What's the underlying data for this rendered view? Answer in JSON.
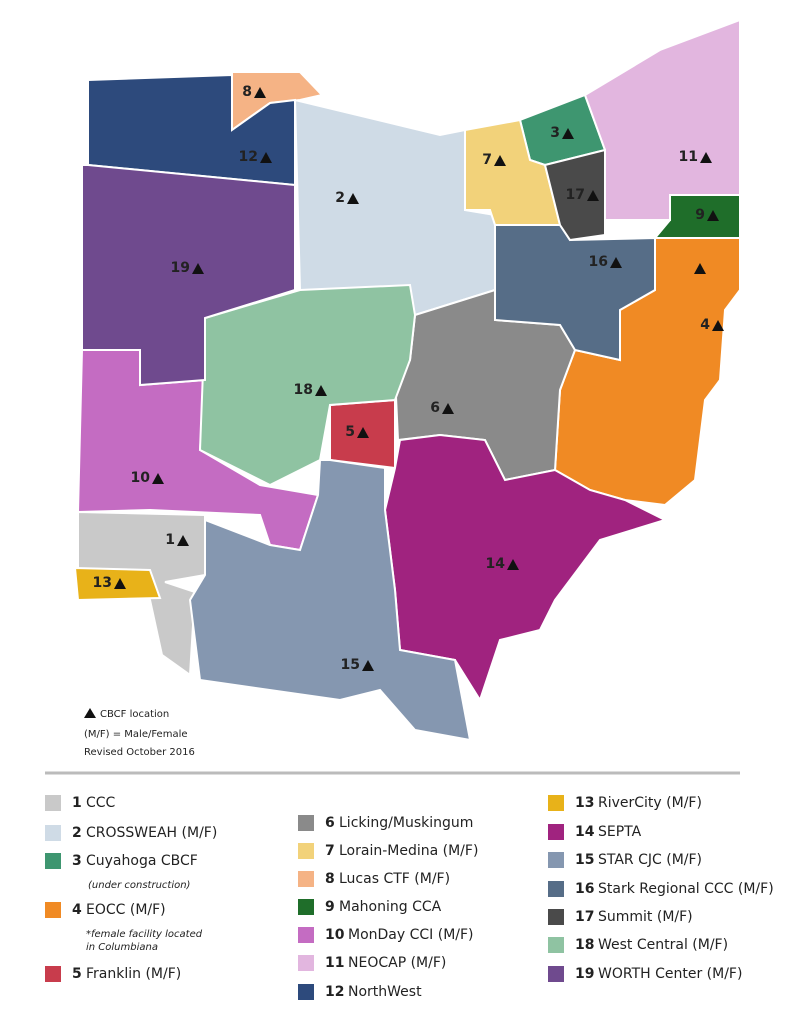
{
  "map": {
    "regions": [
      {
        "number": 1,
        "name": "CCC",
        "color": "#c9c9c9"
      },
      {
        "number": 2,
        "name": "CROSSWEAH (M/F)",
        "color": "#cfdbe6"
      },
      {
        "number": 3,
        "name": "Cuyahoga CBCF",
        "color": "#3e9670",
        "note": "(under construction)"
      },
      {
        "number": 4,
        "name": "EOCC (M/F)",
        "color": "#f08a24",
        "note": "*female facility located in Columbiana"
      },
      {
        "number": 5,
        "name": "Franklin (M/F)",
        "color": "#c83c4c"
      },
      {
        "number": 6,
        "name": "Licking/Muskingum",
        "color": "#8a8a8a"
      },
      {
        "number": 7,
        "name": "Lorain-Medina (M/F)",
        "color": "#f2d27a"
      },
      {
        "number": 8,
        "name": "Lucas CTF (M/F)",
        "color": "#f5b385"
      },
      {
        "number": 9,
        "name": "Mahoning CCA",
        "color": "#1f6e2a"
      },
      {
        "number": 10,
        "name": "MonDay CCI (M/F)",
        "color": "#c46cc2"
      },
      {
        "number": 11,
        "name": "NEOCAP (M/F)",
        "color": "#e2b6df"
      },
      {
        "number": 12,
        "name": "NorthWest",
        "color": "#2d4a7c"
      },
      {
        "number": 13,
        "name": "RiverCity (M/F)",
        "color": "#e8b219"
      },
      {
        "number": 14,
        "name": "SEPTA",
        "color": "#a0237f"
      },
      {
        "number": 15,
        "name": "STAR CJC (M/F)",
        "color": "#8597b0"
      },
      {
        "number": 16,
        "name": "Stark Regional CCC (M/F)",
        "color": "#566d87"
      },
      {
        "number": 17,
        "name": "Summit (M/F)",
        "color": "#4a4a4a"
      },
      {
        "number": 18,
        "name": "West Central (M/F)",
        "color": "#8fc3a2"
      },
      {
        "number": 19,
        "name": "WORTH Center (M/F)",
        "color": "#6f4a8e"
      }
    ],
    "key": {
      "triangle": "CBCF location",
      "mf": "(M/F) = Male/Female",
      "revised": "Revised October 2016"
    }
  }
}
